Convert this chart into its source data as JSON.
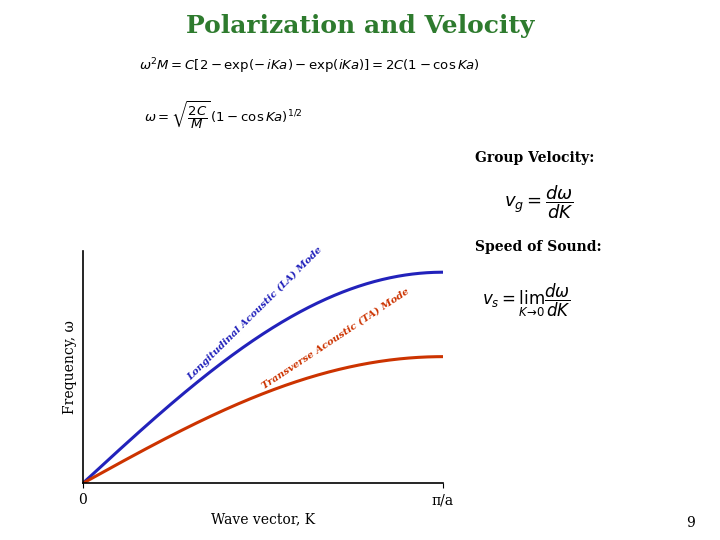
{
  "title": "Polarization and Velocity",
  "title_color": "#2e7b2e",
  "title_fontsize": 18,
  "bg_color": "#ffffff",
  "xlabel": "Wave vector, K",
  "ylabel": "Frequency, ω",
  "x_tick_labels": [
    "0",
    "π/a"
  ],
  "la_label": "Longitudinal Acoustic (LA) Mode",
  "ta_label": "Transverse Acoustic (TA) Mode",
  "la_color": "#2222bb",
  "ta_color": "#cc3300",
  "la_amplitude": 1.0,
  "ta_amplitude": 0.6,
  "group_vel_title": "Group Velocity:",
  "speed_sound_title": "Speed of Sound:",
  "page_num": "9",
  "eq1_parts": [
    "$\\omega^2 M = C[2 - \\exp(-\\,iKa) - \\exp(iKa)] = 2C(1-\\cos Ka)$"
  ],
  "eq2_parts": [
    "$\\omega = \\sqrt{\\dfrac{2C}{M}}\\,(1-\\cos Ka)^{1/2}$"
  ],
  "gv_eq": "$v_g = \\dfrac{d\\omega}{dK}$",
  "ss_eq": "$v_s = \\lim_{K\\to 0}\\dfrac{d\\omega}{dK}$"
}
